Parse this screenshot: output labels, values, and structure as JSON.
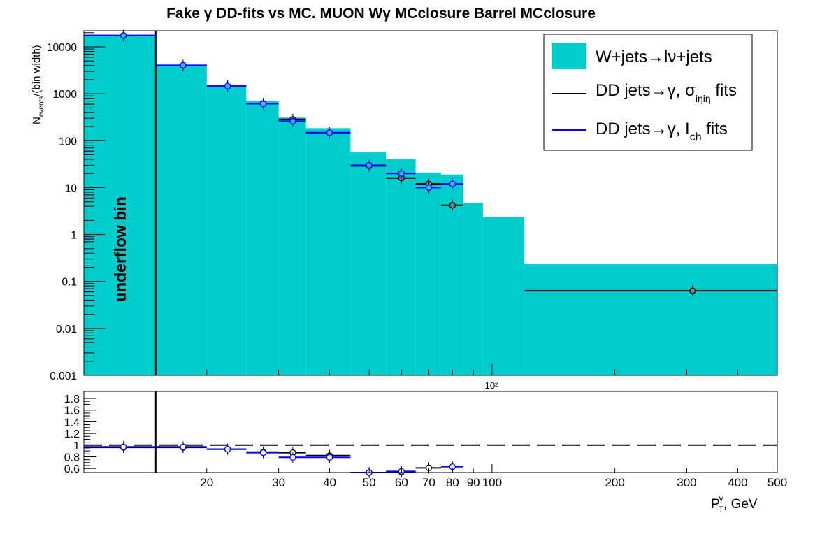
{
  "chart_data": [
    {
      "type": "histogram",
      "title": "Fake γ DD-fits vs MC. MUON Wγ MCclosure Barrel MCclosure",
      "ylabel_main": "N",
      "ylabel_sub": "events",
      "ylabel_tail": "/(bin width)",
      "yscale": "log",
      "ylim": [
        0.001,
        22000
      ],
      "y_ticks": [
        "10000",
        "1000",
        "100",
        "10",
        "1",
        "0.1",
        "0.01",
        "0.001"
      ],
      "x_mid_label": "10²",
      "annotation": "underflow bin",
      "legend": {
        "placement": "top-right",
        "entries": [
          {
            "label": "W+jets→lν+jets"
          },
          {
            "label_main": "DD jets→γ, σ",
            "label_sub": "iηiη",
            "label_tail": " fits"
          },
          {
            "label_main": "DD jets→γ, I",
            "label_sub": "ch",
            "label_tail": " fits"
          }
        ]
      },
      "colors": {
        "mc_fill": "#00cccc",
        "sigma_fits": "#000000",
        "ich_fits": "#0000ff"
      },
      "mc_hist": [
        {
          "x0": 10,
          "x1": 15,
          "y": 17500
        },
        {
          "x0": 15,
          "x1": 20,
          "y": 4100
        },
        {
          "x0": 20,
          "x1": 25,
          "y": 1480
        },
        {
          "x0": 25,
          "x1": 30,
          "y": 700
        },
        {
          "x0": 30,
          "x1": 35,
          "y": 310
        },
        {
          "x0": 35,
          "x1": 45,
          "y": 185
        },
        {
          "x0": 45,
          "x1": 55,
          "y": 58
        },
        {
          "x0": 55,
          "x1": 65,
          "y": 40
        },
        {
          "x0": 65,
          "x1": 75,
          "y": 21
        },
        {
          "x0": 75,
          "x1": 85,
          "y": 19
        },
        {
          "x0": 85,
          "x1": 95,
          "y": 4.7
        },
        {
          "x0": 95,
          "x1": 120,
          "y": 2.35
        },
        {
          "x0": 120,
          "x1": 500,
          "y": 0.24
        }
      ],
      "sigma_fits": [
        {
          "x": 12.5,
          "x0": 10,
          "x1": 15,
          "y": 17300
        },
        {
          "x": 17.5,
          "x0": 15,
          "x1": 20,
          "y": 4000
        },
        {
          "x": 22.5,
          "x0": 20,
          "x1": 25,
          "y": 1450
        },
        {
          "x": 27.5,
          "x0": 25,
          "x1": 30,
          "y": 620
        },
        {
          "x": 32.5,
          "x0": 30,
          "x1": 35,
          "y": 285
        },
        {
          "x": 40,
          "x0": 35,
          "x1": 45,
          "y": 148
        },
        {
          "x": 50,
          "x0": 45,
          "x1": 55,
          "y": 29
        },
        {
          "x": 60,
          "x0": 55,
          "x1": 65,
          "y": 16
        },
        {
          "x": 70,
          "x0": 65,
          "x1": 75,
          "y": 12
        },
        {
          "x": 80,
          "x0": 75,
          "x1": 85,
          "y": 4.2
        },
        {
          "x": 310,
          "x0": 120,
          "x1": 500,
          "y": 0.063
        }
      ],
      "ich_fits": [
        {
          "x": 12.5,
          "x0": 10,
          "x1": 15,
          "y": 17500
        },
        {
          "x": 17.5,
          "x0": 15,
          "x1": 20,
          "y": 4050
        },
        {
          "x": 22.5,
          "x0": 20,
          "x1": 25,
          "y": 1460
        },
        {
          "x": 27.5,
          "x0": 25,
          "x1": 30,
          "y": 610
        },
        {
          "x": 32.5,
          "x0": 30,
          "x1": 35,
          "y": 260
        },
        {
          "x": 40,
          "x0": 35,
          "x1": 45,
          "y": 148
        },
        {
          "x": 50,
          "x0": 45,
          "x1": 55,
          "y": 30
        },
        {
          "x": 60,
          "x0": 55,
          "x1": 65,
          "y": 20
        },
        {
          "x": 70,
          "x0": 65,
          "x1": 75,
          "y": 10
        },
        {
          "x": 80,
          "x0": 75,
          "x1": 85,
          "y": 12
        }
      ]
    },
    {
      "type": "ratio",
      "ylim": [
        0.53,
        1.92
      ],
      "y_ticks": [
        {
          "v": 0.6,
          "label": "0.6"
        },
        {
          "v": 0.8,
          "label": "0.8"
        },
        {
          "v": 1.0,
          "label": "1"
        },
        {
          "v": 1.2,
          "label": "1.2"
        },
        {
          "v": 1.4,
          "label": "1.4"
        },
        {
          "v": 1.6,
          "label": "1.6"
        },
        {
          "v": 1.8,
          "label": "1.8"
        }
      ],
      "reference_line": 1.0,
      "x_ticks": [
        {
          "v": 20,
          "label": "20"
        },
        {
          "v": 30,
          "label": "30"
        },
        {
          "v": 40,
          "label": "40"
        },
        {
          "v": 50,
          "label": "50"
        },
        {
          "v": 60,
          "label": "60"
        },
        {
          "v": 70,
          "label": "70"
        },
        {
          "v": 80,
          "label": "80"
        },
        {
          "v": 90,
          "label": "90"
        },
        {
          "v": 100,
          "label": "100"
        },
        {
          "v": 200,
          "label": "200"
        },
        {
          "v": 300,
          "label": "300"
        },
        {
          "v": 400,
          "label": "400"
        },
        {
          "v": 500,
          "label": "500"
        }
      ],
      "xscale": "log",
      "xlim": [
        10,
        500
      ],
      "xlabel_main": "P",
      "xlabel_sup": "γ",
      "xlabel_sub": "T",
      "xlabel_tail": ", GeV",
      "sigma_ratio": [
        {
          "x": 12.5,
          "x0": 10,
          "x1": 15,
          "y": 0.96
        },
        {
          "x": 17.5,
          "x0": 15,
          "x1": 20,
          "y": 0.96
        },
        {
          "x": 22.5,
          "x0": 20,
          "x1": 25,
          "y": 0.93
        },
        {
          "x": 27.5,
          "x0": 25,
          "x1": 30,
          "y": 0.88
        },
        {
          "x": 32.5,
          "x0": 30,
          "x1": 35,
          "y": 0.87
        },
        {
          "x": 40,
          "x0": 35,
          "x1": 45,
          "y": 0.82
        },
        {
          "x": 50,
          "x0": 45,
          "x1": 55,
          "y": 0.53
        },
        {
          "x": 60,
          "x0": 55,
          "x1": 65,
          "y": 0.54
        },
        {
          "x": 70,
          "x0": 65,
          "x1": 75,
          "y": 0.61
        }
      ],
      "ich_ratio": [
        {
          "x": 12.5,
          "x0": 10,
          "x1": 15,
          "y": 0.97
        },
        {
          "x": 17.5,
          "x0": 15,
          "x1": 20,
          "y": 0.97
        },
        {
          "x": 22.5,
          "x0": 20,
          "x1": 25,
          "y": 0.93
        },
        {
          "x": 27.5,
          "x0": 25,
          "x1": 30,
          "y": 0.87
        },
        {
          "x": 32.5,
          "x0": 30,
          "x1": 35,
          "y": 0.79
        },
        {
          "x": 40,
          "x0": 35,
          "x1": 45,
          "y": 0.79
        },
        {
          "x": 50,
          "x0": 45,
          "x1": 55,
          "y": 0.53
        },
        {
          "x": 60,
          "x0": 55,
          "x1": 65,
          "y": 0.55
        },
        {
          "x": 80,
          "x0": 75,
          "x1": 85,
          "y": 0.63
        }
      ]
    }
  ]
}
